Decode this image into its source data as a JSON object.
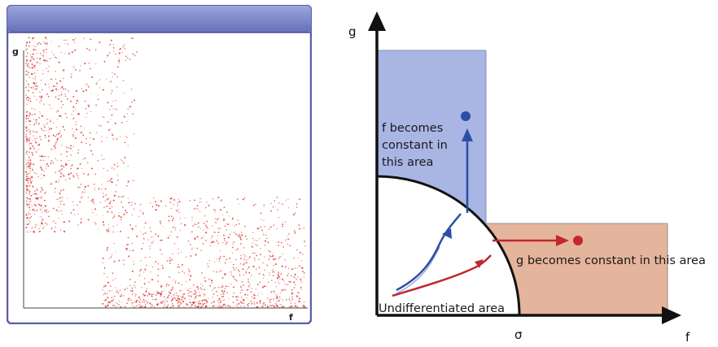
{
  "scatter_window": {
    "y_axis_label": "g",
    "x_axis_label": "f",
    "title_bar_color": "#7b86c8",
    "point_color": "#d9342b"
  },
  "phase_diagram": {
    "y_axis_label": "g",
    "x_axis_label": "f",
    "sigma_label": "σ",
    "blue_region_text": [
      "f becomes",
      "constant in",
      "this area"
    ],
    "orange_region_text": "g becomes constant in this area",
    "origin_region_text": "Undifferentiated area",
    "blue_region_color": "#a9b5e3",
    "orange_region_color": "#e5b49c",
    "blue_path_color": "#2c4ea8",
    "red_path_color": "#c0282a"
  }
}
